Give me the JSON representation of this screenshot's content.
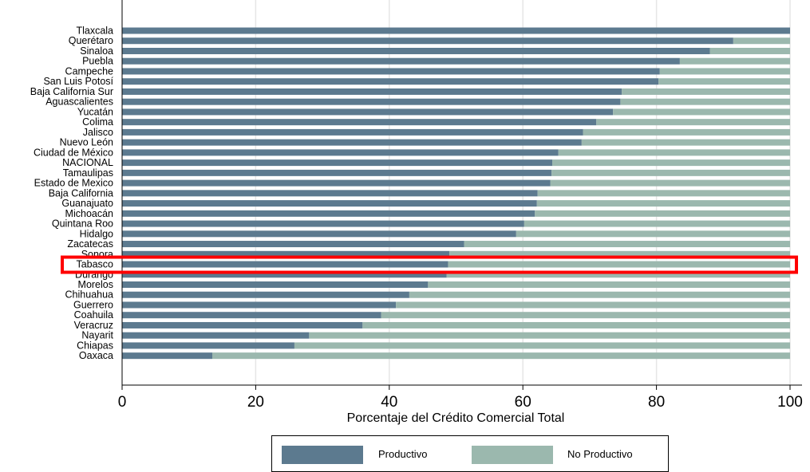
{
  "chart_data": {
    "type": "bar",
    "orientation": "horizontal",
    "stacked": true,
    "xlabel": "Porcentaje del Crédito Comercial Total",
    "xlim": [
      0,
      100
    ],
    "xticks": [
      0,
      20,
      40,
      60,
      80,
      100
    ],
    "grid": true,
    "legend_position": "bottom",
    "highlighted_category": "Tabasco",
    "highlight_color": "#ff0000",
    "categories": [
      "Tlaxcala",
      "Querétaro",
      "Sinaloa",
      "Puebla",
      "Campeche",
      "San Luis Potosí",
      "Baja California Sur",
      "Aguascalientes",
      "Yucatán",
      "Colima",
      "Jalisco",
      "Nuevo León",
      "Ciudad de México",
      "NACIONAL",
      "Tamaulipas",
      "Estado de Mexico",
      "Baja California",
      "Guanajuato",
      "Michoacán",
      "Quintana Roo",
      "Hidalgo",
      "Zacatecas",
      "Sonora",
      "Tabasco",
      "Durango",
      "Morelos",
      "Chihuahua",
      "Guerrero",
      "Coahuila",
      "Veracruz",
      "Nayarit",
      "Chiapas",
      "Oaxaca"
    ],
    "series": [
      {
        "name": "Productivo",
        "color": "#5c7a8f",
        "values": [
          100,
          91.5,
          88,
          83.5,
          80.5,
          80.3,
          74.8,
          74.6,
          73.5,
          71,
          69,
          68.8,
          65.3,
          64.4,
          64.3,
          64.1,
          62.2,
          62.1,
          61.8,
          60.2,
          59,
          51.2,
          49,
          48.8,
          48.6,
          45.8,
          43,
          41,
          38.8,
          36,
          28,
          25.8,
          13.5
        ]
      },
      {
        "name": "No Productivo",
        "color": "#9bb8ae",
        "values": [
          0,
          8.5,
          12,
          16.5,
          19.5,
          19.7,
          25.2,
          25.4,
          26.5,
          29,
          31,
          31.2,
          34.7,
          35.6,
          35.7,
          35.9,
          37.8,
          37.9,
          38.2,
          39.8,
          41,
          48.8,
          51,
          51.2,
          51.4,
          54.2,
          57,
          59,
          61.2,
          64,
          72,
          74.2,
          86.5
        ]
      }
    ]
  }
}
